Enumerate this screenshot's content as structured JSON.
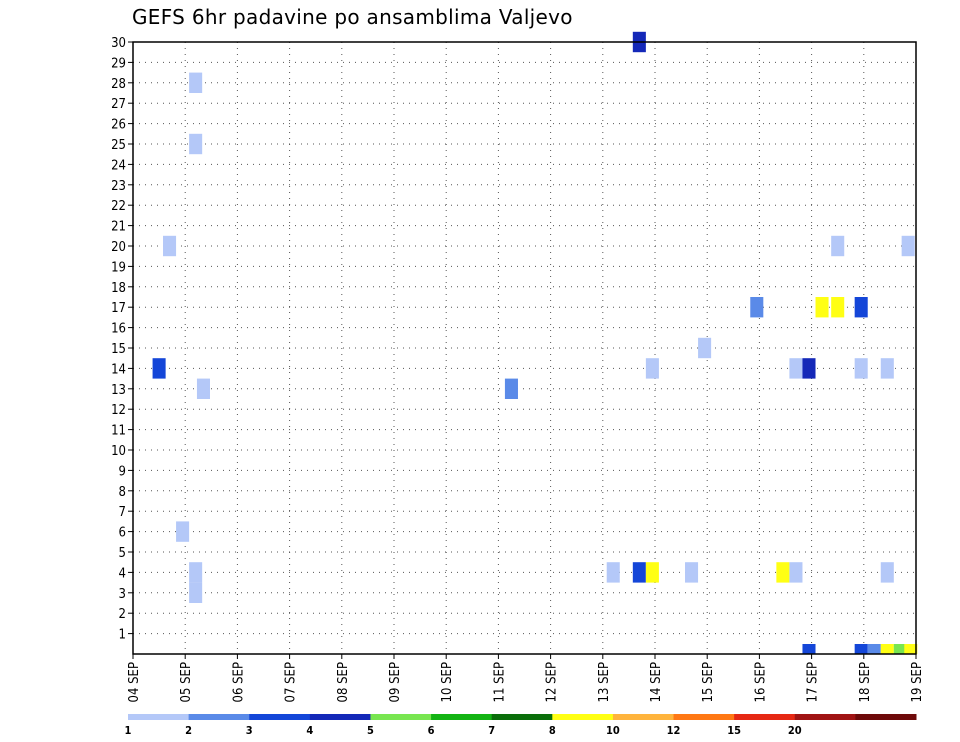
{
  "chart_data": {
    "type": "heatmap",
    "title": "GEFS 6hr padavine po ansamblima Valjevo",
    "xlabel": "",
    "ylabel": "",
    "x_range_days": [
      0,
      15
    ],
    "x_ticks": [
      "04 SEP",
      "05 SEP",
      "06 SEP",
      "07 SEP",
      "08 SEP",
      "09 SEP",
      "10 SEP",
      "11 SEP",
      "12 SEP",
      "13 SEP",
      "14 SEP",
      "15 SEP",
      "16 SEP",
      "17 SEP",
      "18 SEP",
      "19 SEP"
    ],
    "y_ticks": [
      "1",
      "2",
      "3",
      "4",
      "5",
      "6",
      "7",
      "8",
      "9",
      "10",
      "11",
      "12",
      "13",
      "14",
      "15",
      "16",
      "17",
      "18",
      "19",
      "20",
      "21",
      "22",
      "23",
      "24",
      "25",
      "26",
      "27",
      "28",
      "29",
      "30"
    ],
    "ylim": [
      0,
      30
    ],
    "grid": true,
    "colorbar": {
      "labels": [
        "1",
        "2",
        "3",
        "4",
        "5",
        "6",
        "7",
        "8",
        "10",
        "12",
        "15",
        "20"
      ],
      "colors": [
        "#b4c8f8",
        "#5a8ae8",
        "#1446d8",
        "#1428b8",
        "#78e650",
        "#14b414",
        "#0a6e0a",
        "#ffff14",
        "#ffb43c",
        "#ff7814",
        "#e62814",
        "#a01414",
        "#6e0a0a"
      ]
    },
    "cells": [
      {
        "day": 9.7,
        "member": 30,
        "value": 4.5
      },
      {
        "day": 1.2,
        "member": 28,
        "value": 1.5
      },
      {
        "day": 1.2,
        "member": 25,
        "value": 1.5
      },
      {
        "day": 0.7,
        "member": 20,
        "value": 1.5
      },
      {
        "day": 13.5,
        "member": 20,
        "value": 1.5
      },
      {
        "day": 14.85,
        "member": 20,
        "value": 1.5
      },
      {
        "day": 11.95,
        "member": 17,
        "value": 2.5
      },
      {
        "day": 13.2,
        "member": 17,
        "value": 9
      },
      {
        "day": 13.5,
        "member": 17,
        "value": 9
      },
      {
        "day": 13.95,
        "member": 17,
        "value": 3
      },
      {
        "day": 10.95,
        "member": 15,
        "value": 1.5
      },
      {
        "day": 0.5,
        "member": 14,
        "value": 3.2
      },
      {
        "day": 9.95,
        "member": 14,
        "value": 1.5
      },
      {
        "day": 12.7,
        "member": 14,
        "value": 1.5
      },
      {
        "day": 12.95,
        "member": 14,
        "value": 4.5
      },
      {
        "day": 13.95,
        "member": 14,
        "value": 1.5
      },
      {
        "day": 14.45,
        "member": 14,
        "value": 1.5
      },
      {
        "day": 1.35,
        "member": 13,
        "value": 1.5
      },
      {
        "day": 7.25,
        "member": 13,
        "value": 2.5
      },
      {
        "day": 0.95,
        "member": 6,
        "value": 1.5
      },
      {
        "day": 1.2,
        "member": 4,
        "value": 1.5
      },
      {
        "day": 1.2,
        "member": 3,
        "value": 1.5
      },
      {
        "day": 9.2,
        "member": 4,
        "value": 1.5
      },
      {
        "day": 9.7,
        "member": 4,
        "value": 3.2
      },
      {
        "day": 9.95,
        "member": 4,
        "value": 8.5
      },
      {
        "day": 10.7,
        "member": 4,
        "value": 1.5
      },
      {
        "day": 12.45,
        "member": 4,
        "value": 8.5
      },
      {
        "day": 12.7,
        "member": 4,
        "value": 1.5
      },
      {
        "day": 14.45,
        "member": 4,
        "value": 1.5
      },
      {
        "day": 12.95,
        "member": 0,
        "value": 3.2
      },
      {
        "day": 13.95,
        "member": 0,
        "value": 3.2
      },
      {
        "day": 14.2,
        "member": 0,
        "value": 2.5
      },
      {
        "day": 14.45,
        "member": 0,
        "value": 9
      },
      {
        "day": 14.7,
        "member": 0,
        "value": 5.5
      },
      {
        "day": 14.9,
        "member": 0,
        "value": 9
      }
    ]
  }
}
